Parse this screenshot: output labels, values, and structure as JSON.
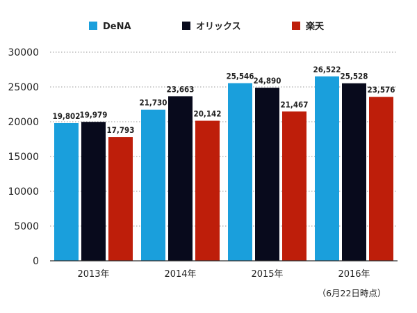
{
  "chart_data": {
    "type": "bar",
    "categories": [
      "2013年",
      "2014年",
      "2015年",
      "2016年"
    ],
    "note": "（6月22日時点）",
    "series": [
      {
        "name": "DeNA",
        "color": "#1a9fdc",
        "values": [
          19802,
          21730,
          25546,
          26522
        ],
        "labels": [
          "19,802",
          "21,730",
          "25,546",
          "26,522"
        ]
      },
      {
        "name": "オリックス",
        "color": "#080a1c",
        "values": [
          19979,
          23663,
          24890,
          25528
        ],
        "labels": [
          "19,979",
          "23,663",
          "24,890",
          "25,528"
        ]
      },
      {
        "name": "楽天",
        "color": "#be1e0a",
        "values": [
          17793,
          20142,
          21467,
          23576
        ],
        "labels": [
          "17,793",
          "20,142",
          "21,467",
          "23,576"
        ]
      }
    ],
    "ylim": [
      0,
      30000
    ],
    "yticks": [
      "0",
      "5000",
      "10000",
      "15000",
      "20000",
      "25000",
      "30000"
    ],
    "grid": true,
    "legend_position": "top"
  }
}
